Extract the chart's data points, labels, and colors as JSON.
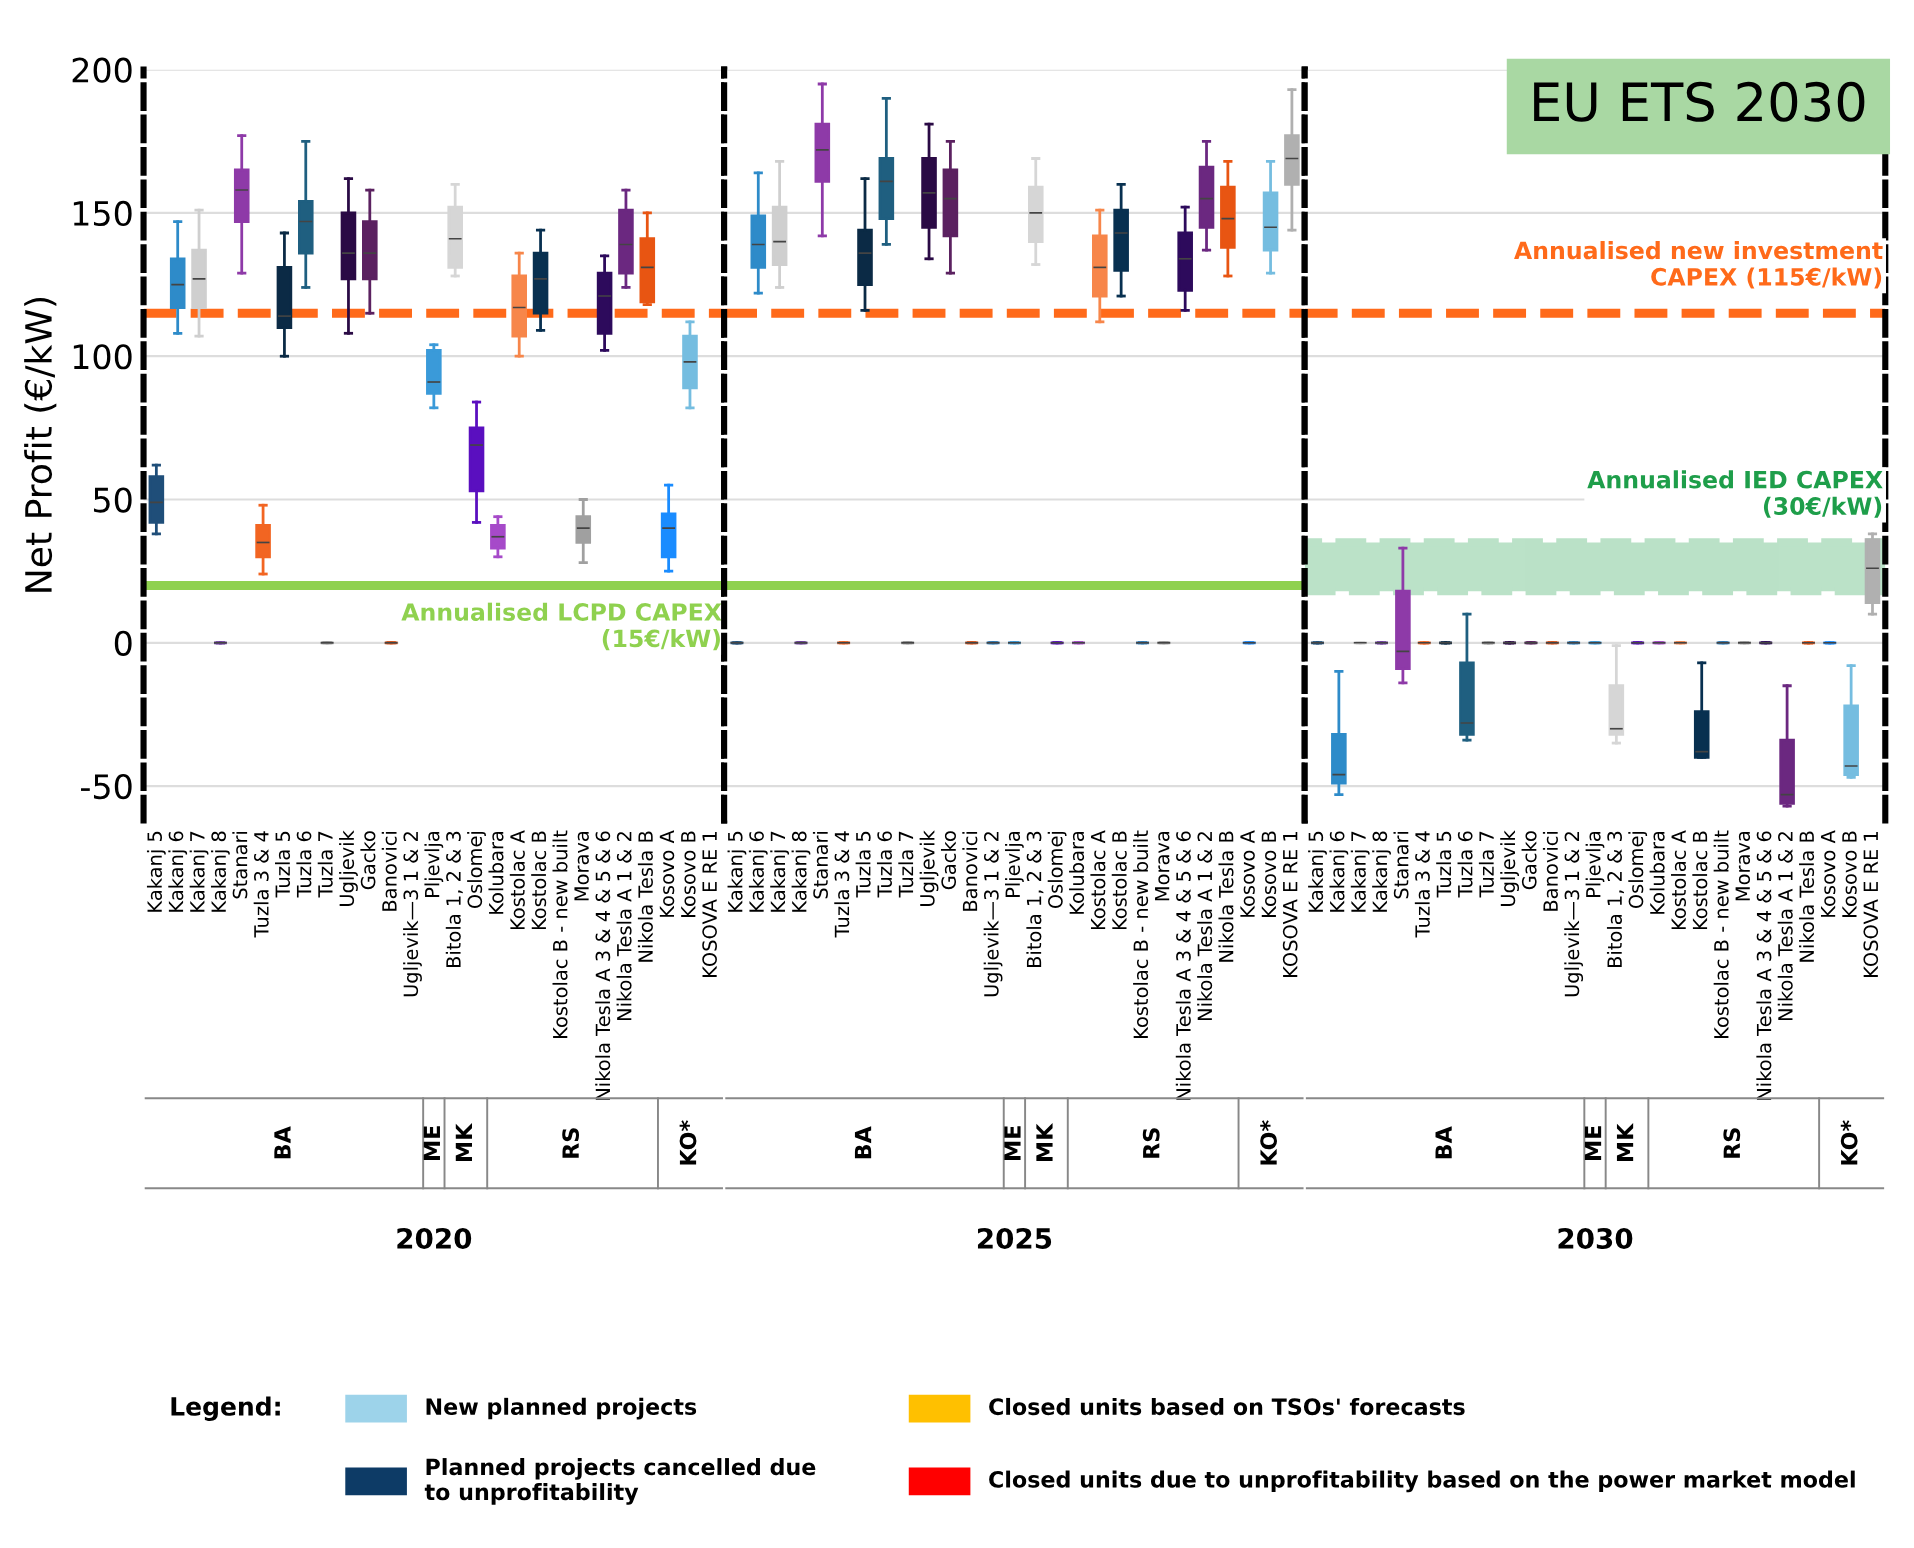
{
  "chart_data": [
    {
      "type": "box",
      "xlabel": "2020",
      "ylabel": "Net Profit (€/kW)",
      "categories": [
        "Kakanj 5",
        "Kakanj 6",
        "Kakanj 7",
        "Kakanj 8",
        "Stanari",
        "Tuzla 3 & 4",
        "Tuzla 5",
        "Tuzla 6",
        "Tuzla 7",
        "Ugljevik",
        "Gacko",
        "Banovici",
        "Ugljevik—3 1 & 2",
        "Pljevlja",
        "Bitola 1, 2 & 3",
        "Oslomej",
        "Kolubara",
        "Kostolac A",
        "Kostolac B",
        "Kostolac B - new built",
        "Morava",
        "Nikola Tesla A 3 & 4 & 5 & 6",
        "Nikola Tesla A 1 & 2",
        "Nikola Tesla B",
        "Kosovo A",
        "Kosovo B",
        "KOSOVA E RE 1"
      ],
      "colors": [
        "#1f4e79",
        "#2e8bc9",
        "#cfcfcf",
        "#6a3d9a",
        "#8e3aa8",
        "#f26522",
        "#0b2a45",
        "#1f5f80",
        "#9a9a9a",
        "#2a0a45",
        "#5b2160",
        "#d9541a",
        "#2e7bb8",
        "#3a9ad9",
        "#d6d6d6",
        "#5a0fbf",
        "#a64ac9",
        "#f7864a",
        "#083050",
        "#2e7bb8",
        "#a0a0a0",
        "#2d0a5c",
        "#6b2880",
        "#e85512",
        "#1a8cff",
        "#75bde0",
        "#b0b0b0"
      ],
      "boxes": [
        {
          "low": 38,
          "q1": 42,
          "median": 49,
          "q3": 58,
          "high": 62
        },
        {
          "low": 108,
          "q1": 117,
          "median": 125,
          "q3": 134,
          "high": 147
        },
        {
          "low": 107,
          "q1": 117,
          "median": 127,
          "q3": 137,
          "high": 151
        },
        {
          "low": 0,
          "q1": 0,
          "median": 0,
          "q3": 0,
          "high": 0
        },
        {
          "low": 129,
          "q1": 147,
          "median": 158,
          "q3": 165,
          "high": 177
        },
        {
          "low": 24,
          "q1": 30,
          "median": 35,
          "q3": 41,
          "high": 48
        },
        {
          "low": 100,
          "q1": 110,
          "median": 114,
          "q3": 131,
          "high": 143
        },
        {
          "low": 124,
          "q1": 136,
          "median": 147,
          "q3": 154,
          "high": 175
        },
        {
          "low": 0,
          "q1": 0,
          "median": 0,
          "q3": 0,
          "high": 0
        },
        {
          "low": 108,
          "q1": 127,
          "median": 136,
          "q3": 150,
          "high": 162
        },
        {
          "low": 115,
          "q1": 127,
          "median": 136,
          "q3": 147,
          "high": 158
        },
        {
          "low": 0,
          "q1": 0,
          "median": 0,
          "q3": 0,
          "high": 0
        },
        {
          "low": 0,
          "q1": 0,
          "median": 0,
          "q3": 0,
          "high": 0
        },
        {
          "low": 82,
          "q1": 87,
          "median": 91,
          "q3": 102,
          "high": 104
        },
        {
          "low": 128,
          "q1": 131,
          "median": 141,
          "q3": 152,
          "high": 160
        },
        {
          "low": 42,
          "q1": 53,
          "median": 69,
          "q3": 75,
          "high": 84
        },
        {
          "low": 30,
          "q1": 33,
          "median": 37,
          "q3": 41,
          "high": 44
        },
        {
          "low": 100,
          "q1": 107,
          "median": 117,
          "q3": 128,
          "high": 136
        },
        {
          "low": 109,
          "q1": 115,
          "median": 127,
          "q3": 136,
          "high": 144
        },
        {
          "low": 0,
          "q1": 0,
          "median": 0,
          "q3": 0,
          "high": 0
        },
        {
          "low": 28,
          "q1": 35,
          "median": 40,
          "q3": 44,
          "high": 50
        },
        {
          "low": 102,
          "q1": 108,
          "median": 121,
          "q3": 129,
          "high": 135
        },
        {
          "low": 124,
          "q1": 129,
          "median": 139,
          "q3": 151,
          "high": 158
        },
        {
          "low": 118,
          "q1": 119,
          "median": 131,
          "q3": 141,
          "high": 150
        },
        {
          "low": 25,
          "q1": 30,
          "median": 40,
          "q3": 45,
          "high": 55
        },
        {
          "low": 82,
          "q1": 89,
          "median": 98,
          "q3": 107,
          "high": 112
        },
        {
          "low": 0,
          "q1": 0,
          "median": 0,
          "q3": 0,
          "high": 0
        }
      ],
      "ylim": [
        -62,
        200
      ],
      "yticks": [
        -50,
        0,
        50,
        100,
        150,
        200
      ],
      "grid": "y",
      "line_style": "dashed",
      "ref_lines": [
        {
          "axis": "y",
          "value": 115,
          "color": "#ff6a1a",
          "line_style": "dashed"
        },
        {
          "axis": "y",
          "value": 20,
          "label": "Annualised LCPD CAPEX\n(15€/kW)",
          "color": "#8fd14f",
          "line_style": "solid"
        }
      ],
      "annotations": [
        "BA",
        "ME",
        "MK",
        "RS",
        "KO*"
      ]
    },
    {
      "type": "box",
      "xlabel": "2025",
      "categories": [
        "Kakanj 5",
        "Kakanj 6",
        "Kakanj 7",
        "Kakanj 8",
        "Stanari",
        "Tuzla 3 & 4",
        "Tuzla 5",
        "Tuzla 6",
        "Tuzla 7",
        "Ugljevik",
        "Gacko",
        "Banovici",
        "Ugljevik—3 1 & 2",
        "Pljevlja",
        "Bitola 1, 2 & 3",
        "Oslomej",
        "Kolubara",
        "Kostolac A",
        "Kostolac B",
        "Kostolac B - new built",
        "Morava",
        "Nikola Tesla A 3 & 4 & 5 & 6",
        "Nikola Tesla A 1 & 2",
        "Nikola Tesla B",
        "Kosovo A",
        "Kosovo B",
        "KOSOVA E RE 1"
      ],
      "colors": [
        "#1f4e79",
        "#2e8bc9",
        "#cfcfcf",
        "#6a3d9a",
        "#8e3aa8",
        "#f26522",
        "#0b2a45",
        "#1f5f80",
        "#9a9a9a",
        "#2a0a45",
        "#5b2160",
        "#d9541a",
        "#2e7bb8",
        "#3a9ad9",
        "#d6d6d6",
        "#5a0fbf",
        "#a64ac9",
        "#f7864a",
        "#083050",
        "#2e7bb8",
        "#a0a0a0",
        "#2d0a5c",
        "#6b2880",
        "#e85512",
        "#1a8cff",
        "#75bde0",
        "#b0b0b0"
      ],
      "boxes": [
        {
          "low": 0,
          "q1": 0,
          "median": 0,
          "q3": 0,
          "high": 0
        },
        {
          "low": 122,
          "q1": 131,
          "median": 139,
          "q3": 149,
          "high": 164
        },
        {
          "low": 124,
          "q1": 132,
          "median": 140,
          "q3": 152,
          "high": 168
        },
        {
          "low": 0,
          "q1": 0,
          "median": 0,
          "q3": 0,
          "high": 0
        },
        {
          "low": 142,
          "q1": 161,
          "median": 172,
          "q3": 181,
          "high": 195
        },
        {
          "low": 0,
          "q1": 0,
          "median": 0,
          "q3": 0,
          "high": 0
        },
        {
          "low": 116,
          "q1": 125,
          "median": 136,
          "q3": 144,
          "high": 162
        },
        {
          "low": 139,
          "q1": 148,
          "median": 161,
          "q3": 169,
          "high": 190
        },
        {
          "low": 0,
          "q1": 0,
          "median": 0,
          "q3": 0,
          "high": 0
        },
        {
          "low": 134,
          "q1": 145,
          "median": 157,
          "q3": 169,
          "high": 181
        },
        {
          "low": 129,
          "q1": 142,
          "median": 155,
          "q3": 165,
          "high": 175
        },
        {
          "low": 0,
          "q1": 0,
          "median": 0,
          "q3": 0,
          "high": 0
        },
        {
          "low": 0,
          "q1": 0,
          "median": 0,
          "q3": 0,
          "high": 0
        },
        {
          "low": 0,
          "q1": 0,
          "median": 0,
          "q3": 0,
          "high": 0
        },
        {
          "low": 132,
          "q1": 140,
          "median": 150,
          "q3": 159,
          "high": 169
        },
        {
          "low": 0,
          "q1": 0,
          "median": 0,
          "q3": 0,
          "high": 0
        },
        {
          "low": 0,
          "q1": 0,
          "median": 0,
          "q3": 0,
          "high": 0
        },
        {
          "low": 112,
          "q1": 121,
          "median": 131,
          "q3": 142,
          "high": 151
        },
        {
          "low": 121,
          "q1": 130,
          "median": 143,
          "q3": 151,
          "high": 160
        },
        {
          "low": 0,
          "q1": 0,
          "median": 0,
          "q3": 0,
          "high": 0
        },
        {
          "low": 0,
          "q1": 0,
          "median": 0,
          "q3": 0,
          "high": 0
        },
        {
          "low": 116,
          "q1": 123,
          "median": 134,
          "q3": 143,
          "high": 152
        },
        {
          "low": 137,
          "q1": 145,
          "median": 155,
          "q3": 166,
          "high": 175
        },
        {
          "low": 128,
          "q1": 138,
          "median": 148,
          "q3": 159,
          "high": 168
        },
        {
          "low": 0,
          "q1": 0,
          "median": 0,
          "q3": 0,
          "high": 0
        },
        {
          "low": 129,
          "q1": 137,
          "median": 145,
          "q3": 157,
          "high": 168
        },
        {
          "low": 144,
          "q1": 160,
          "median": 169,
          "q3": 177,
          "high": 193
        }
      ],
      "ylim": [
        -62,
        200
      ],
      "yticks": [
        -50,
        0,
        50,
        100,
        150,
        200
      ],
      "grid": "y",
      "tick_labels": "x",
      "line_style": "dashed",
      "ref_lines": [
        {
          "axis": "y",
          "value": 115,
          "color": "#ff6a1a",
          "line_style": "dashed"
        },
        {
          "axis": "y",
          "value": 20,
          "color": "#8fd14f",
          "line_style": "solid"
        }
      ],
      "annotations": [
        "BA",
        "ME",
        "MK",
        "RS",
        "KO*"
      ]
    },
    {
      "type": "box",
      "xlabel": "2030",
      "title": "EU ETS 2030",
      "categories": [
        "Kakanj 5",
        "Kakanj 6",
        "Kakanj 7",
        "Kakanj 8",
        "Stanari",
        "Tuzla 3 & 4",
        "Tuzla 5",
        "Tuzla 6",
        "Tuzla 7",
        "Ugljevik",
        "Gacko",
        "Banovici",
        "Ugljevik—3 1 & 2",
        "Pljevlja",
        "Bitola 1, 2 & 3",
        "Oslomej",
        "Kolubara",
        "Kostolac A",
        "Kostolac B",
        "Kostolac B - new built",
        "Morava",
        "Nikola Tesla A 3 & 4 & 5 & 6",
        "Nikola Tesla A 1 & 2",
        "Nikola Tesla B",
        "Kosovo A",
        "Kosovo B",
        "KOSOVA E RE 1"
      ],
      "colors": [
        "#1f4e79",
        "#2e8bc9",
        "#cfcfcf",
        "#6a3d9a",
        "#8e3aa8",
        "#f26522",
        "#0b2a45",
        "#1f5f80",
        "#9a9a9a",
        "#2a0a45",
        "#5b2160",
        "#d9541a",
        "#2e7bb8",
        "#3a9ad9",
        "#d6d6d6",
        "#5a0fbf",
        "#a64ac9",
        "#f7864a",
        "#083050",
        "#2e7bb8",
        "#a0a0a0",
        "#2d0a5c",
        "#6b2880",
        "#e85512",
        "#1a8cff",
        "#75bde0",
        "#b0b0b0"
      ],
      "boxes": [
        {
          "low": 0,
          "q1": 0,
          "median": 0,
          "q3": 0,
          "high": 0
        },
        {
          "low": -53,
          "q1": -49,
          "median": -46,
          "q3": -32,
          "high": -10
        },
        {
          "low": 0,
          "q1": 0,
          "median": 0,
          "q3": 0,
          "high": 0
        },
        {
          "low": 0,
          "q1": 0,
          "median": 0,
          "q3": 0,
          "high": 0
        },
        {
          "low": -14,
          "q1": -9,
          "median": -3,
          "q3": 18,
          "high": 33
        },
        {
          "low": 0,
          "q1": 0,
          "median": 0,
          "q3": 0,
          "high": 0
        },
        {
          "low": 0,
          "q1": 0,
          "median": 0,
          "q3": 0,
          "high": 0
        },
        {
          "low": -34,
          "q1": -32,
          "median": -28,
          "q3": -7,
          "high": 10
        },
        {
          "low": 0,
          "q1": 0,
          "median": 0,
          "q3": 0,
          "high": 0
        },
        {
          "low": 0,
          "q1": 0,
          "median": 0,
          "q3": 0,
          "high": 0
        },
        {
          "low": 0,
          "q1": 0,
          "median": 0,
          "q3": 0,
          "high": 0
        },
        {
          "low": 0,
          "q1": 0,
          "median": 0,
          "q3": 0,
          "high": 0
        },
        {
          "low": 0,
          "q1": 0,
          "median": 0,
          "q3": 0,
          "high": 0
        },
        {
          "low": 0,
          "q1": 0,
          "median": 0,
          "q3": 0,
          "high": 0
        },
        {
          "low": -35,
          "q1": -32,
          "median": -30,
          "q3": -15,
          "high": -1
        },
        {
          "low": 0,
          "q1": 0,
          "median": 0,
          "q3": 0,
          "high": 0
        },
        {
          "low": 0,
          "q1": 0,
          "median": 0,
          "q3": 0,
          "high": 0
        },
        {
          "low": 0,
          "q1": 0,
          "median": 0,
          "q3": 0,
          "high": 0
        },
        {
          "low": -40,
          "q1": -40,
          "median": -38,
          "q3": -24,
          "high": -7
        },
        {
          "low": 0,
          "q1": 0,
          "median": 0,
          "q3": 0,
          "high": 0
        },
        {
          "low": 0,
          "q1": 0,
          "median": 0,
          "q3": 0,
          "high": 0
        },
        {
          "low": 0,
          "q1": 0,
          "median": 0,
          "q3": 0,
          "high": 0
        },
        {
          "low": -57,
          "q1": -56,
          "median": -53,
          "q3": -34,
          "high": -15
        },
        {
          "low": 0,
          "q1": 0,
          "median": 0,
          "q3": 0,
          "high": 0
        },
        {
          "low": 0,
          "q1": 0,
          "median": 0,
          "q3": 0,
          "high": 0
        },
        {
          "low": -47,
          "q1": -46,
          "median": -43,
          "q3": -22,
          "high": -8
        },
        {
          "low": 10,
          "q1": 14,
          "median": 26,
          "q3": 36,
          "high": 38
        }
      ],
      "ylim": [
        -62,
        200
      ],
      "yticks": [
        -50,
        0,
        50,
        100,
        150,
        200
      ],
      "grid": "y",
      "tick_labels": "x",
      "line_style": "dashed",
      "ref_lines": [
        {
          "axis": "y",
          "value": 115,
          "label": "Annualised new investment\nCAPEX (115€/kW)",
          "color": "#ff6a1a",
          "line_style": "dashed"
        }
      ],
      "bands": [
        {
          "axis": "y",
          "from": 18,
          "to": 35,
          "label": "Annualised IED CAPEX\n(30€/kW)",
          "color": "#1e9e4a"
        }
      ],
      "annotations": [
        "BA",
        "ME",
        "MK",
        "RS",
        "KO*"
      ]
    },
    {
      "type": "other",
      "title": "Legend:",
      "categories": [
        "New planned projects",
        "Closed units based on TSOs' forecasts",
        "Planned projects cancelled due\nto unprofitability",
        "Closed units due to unprofitability based on the power market model"
      ],
      "colors": [
        "#9dd3ea",
        "#ffc000",
        "#0d3b66",
        "#ff0000"
      ]
    }
  ]
}
